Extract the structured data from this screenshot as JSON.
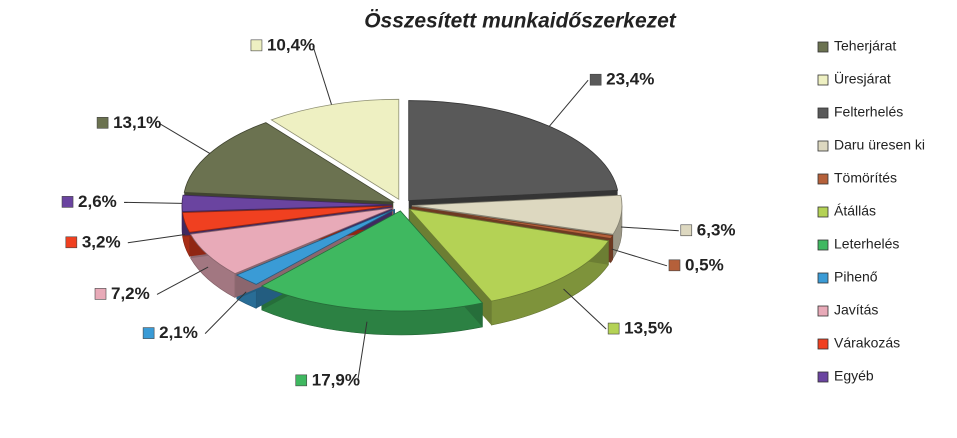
{
  "chart_data": {
    "type": "pie",
    "title": "Összesített munkaidőszerkezet",
    "categories": [
      "Teherjárat",
      "Üresjárat",
      "Felterhelés",
      "Daru üresen ki",
      "Tömörítés",
      "Átállás",
      "Leterhelés",
      "Pihenő",
      "Javítás",
      "Várakozás",
      "Egyéb"
    ],
    "values": [
      13.1,
      10.4,
      23.4,
      6.3,
      0.5,
      13.5,
      17.9,
      2.1,
      7.2,
      3.2,
      2.6
    ],
    "value_labels": [
      "13,1%",
      "10,4%",
      "23,4%",
      "6,3%",
      "0,5%",
      "13,5%",
      "17,9%",
      "2,1%",
      "7,2%",
      "3,2%",
      "2,6%"
    ],
    "colors": [
      "#6b7250",
      "#eef0c2",
      "#595959",
      "#ddd8c0",
      "#b5603a",
      "#b4d255",
      "#3fb860",
      "#3a9bd6",
      "#e8aab8",
      "#f04020",
      "#6a44a0"
    ],
    "legend": "right"
  }
}
